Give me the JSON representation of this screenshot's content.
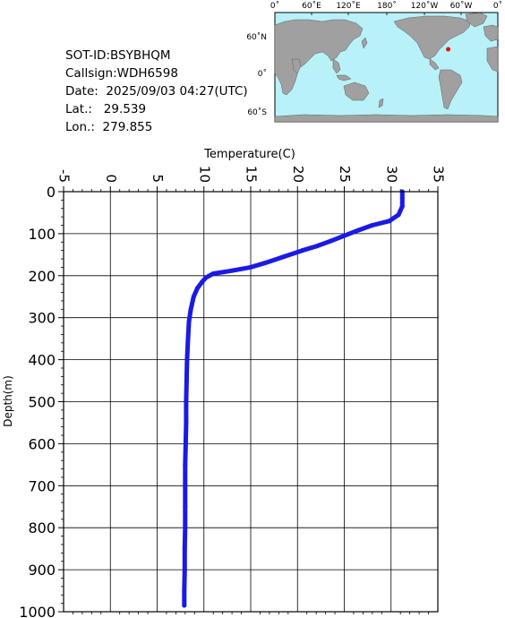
{
  "info": {
    "sot_id": "SOT-ID:BSYBHQM",
    "callsign": "Callsign:WDH6598",
    "date": "Date:  2025/09/03 04:27(UTC)",
    "lat": "Lat.:   29.539",
    "lon": "Lon.:  279.855"
  },
  "map": {
    "lon_labels": [
      "0˚",
      "60˚E",
      "120˚E",
      "180˚",
      "120˚W",
      "60˚W",
      "0˚"
    ],
    "lat_labels": [
      "60˚N",
      "0˚",
      "60˚S"
    ],
    "colors": {
      "ocean": "#b8f2f8",
      "land": "#a0a0a0",
      "marker": "#ff0000"
    },
    "marker": {
      "lat": 29.539,
      "lon": 279.855
    }
  },
  "chart_data": {
    "type": "line",
    "xlabel": "Temperature(C)",
    "ylabel": "Depth(m)",
    "xlim": [
      -5,
      35
    ],
    "ylim": [
      0,
      1000
    ],
    "y_inverted": true,
    "x_ticks": [
      "-5",
      "0",
      "5",
      "10",
      "15",
      "20",
      "25",
      "30",
      "35"
    ],
    "y_ticks": [
      "0",
      "100",
      "200",
      "300",
      "400",
      "500",
      "600",
      "700",
      "800",
      "900",
      "1000"
    ],
    "grid": true,
    "series": [
      {
        "color": "#1a1ae6",
        "points": [
          [
            31.2,
            0
          ],
          [
            31.2,
            15
          ],
          [
            31.2,
            35
          ],
          [
            30.8,
            55
          ],
          [
            29.8,
            70
          ],
          [
            28.0,
            80
          ],
          [
            26.5,
            92
          ],
          [
            25.0,
            105
          ],
          [
            23.5,
            118
          ],
          [
            22.0,
            130
          ],
          [
            20.5,
            140
          ],
          [
            18.5,
            155
          ],
          [
            16.5,
            170
          ],
          [
            15.0,
            180
          ],
          [
            13.0,
            188
          ],
          [
            11.0,
            195
          ],
          [
            10.2,
            205
          ],
          [
            9.8,
            215
          ],
          [
            9.3,
            230
          ],
          [
            8.9,
            250
          ],
          [
            8.6,
            280
          ],
          [
            8.4,
            310
          ],
          [
            8.3,
            350
          ],
          [
            8.2,
            400
          ],
          [
            8.15,
            450
          ],
          [
            8.1,
            500
          ],
          [
            8.1,
            550
          ],
          [
            8.05,
            600
          ],
          [
            8.0,
            650
          ],
          [
            8.0,
            700
          ],
          [
            8.0,
            750
          ],
          [
            8.0,
            800
          ],
          [
            7.95,
            850
          ],
          [
            7.95,
            900
          ],
          [
            7.9,
            950
          ],
          [
            7.9,
            985
          ]
        ]
      }
    ]
  }
}
